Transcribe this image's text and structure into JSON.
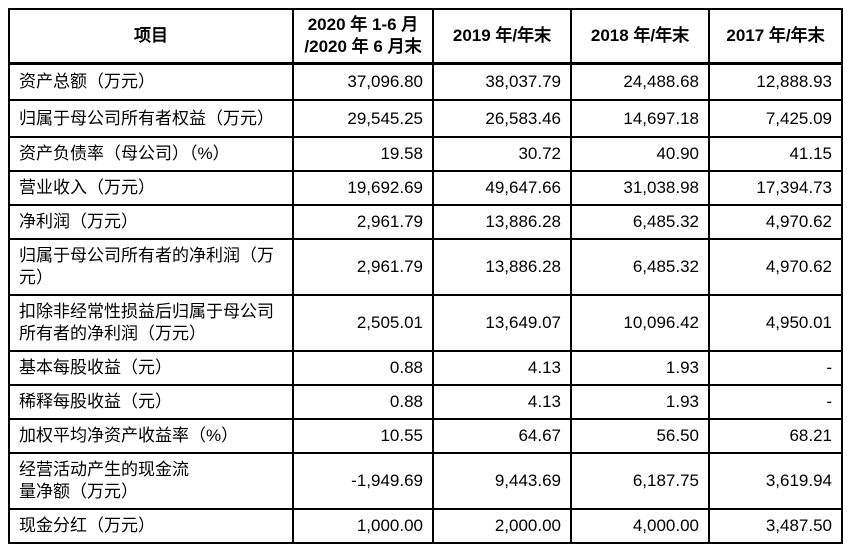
{
  "table": {
    "columns": [
      "项目",
      "2020 年 1-6 月\n/2020 年 6 月末",
      "2019 年/年末",
      "2018 年/年末",
      "2017 年/年末"
    ],
    "rows": [
      {
        "label": "资产总额（万元）",
        "values": [
          "37,096.80",
          "38,037.79",
          "24,488.68",
          "12,888.93"
        ]
      },
      {
        "label": "归属于母公司所有者权益（万元）",
        "values": [
          "29,545.25",
          "26,583.46",
          "14,697.18",
          "7,425.09"
        ]
      },
      {
        "label": "资产负债率（母公司）（%）",
        "values": [
          "19.58",
          "30.72",
          "40.90",
          "41.15"
        ]
      },
      {
        "label": "营业收入（万元）",
        "values": [
          "19,692.69",
          "49,647.66",
          "31,038.98",
          "17,394.73"
        ]
      },
      {
        "label": "净利润（万元）",
        "values": [
          "2,961.79",
          "13,886.28",
          "6,485.32",
          "4,970.62"
        ]
      },
      {
        "label": "归属于母公司所有者的净利润（万\n元）",
        "values": [
          "2,961.79",
          "13,886.28",
          "6,485.32",
          "4,970.62"
        ]
      },
      {
        "label": "扣除非经常性损益后归属于母公司\n所有者的净利润（万元）",
        "values": [
          "2,505.01",
          "13,649.07",
          "10,096.42",
          "4,950.01"
        ]
      },
      {
        "label": "基本每股收益（元）",
        "values": [
          "0.88",
          "4.13",
          "1.93",
          "-"
        ]
      },
      {
        "label": "稀释每股收益（元）",
        "values": [
          "0.88",
          "4.13",
          "1.93",
          "-"
        ]
      },
      {
        "label": "加权平均净资产收益率（%）",
        "values": [
          "10.55",
          "64.67",
          "56.50",
          "68.21"
        ]
      },
      {
        "label": "经营活动产生的现金流\n量净额（万元）",
        "values": [
          "-1,949.69",
          "9,443.69",
          "6,187.75",
          "3,619.94"
        ]
      },
      {
        "label": "现金分红（万元）",
        "values": [
          "1,000.00",
          "2,000.00",
          "4,000.00",
          "3,487.50"
        ]
      }
    ],
    "colors": {
      "border": "#000000",
      "text": "#000000",
      "background": "#ffffff"
    }
  }
}
